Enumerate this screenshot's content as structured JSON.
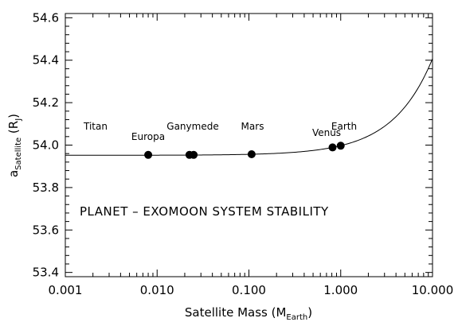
{
  "chart_data": {
    "type": "scatter",
    "title": "",
    "xlabel": {
      "main": "Satellite Mass (M",
      "sub": "Earth",
      "tail": ")"
    },
    "ylabel": {
      "main": "a",
      "sub": "Satellite",
      "tail": " (R",
      "sub2": "J",
      "tail2": ")"
    },
    "xscale": "log",
    "xlim": [
      0.001,
      10.0
    ],
    "ylim": [
      53.38,
      54.62
    ],
    "xticks": [
      {
        "value": 0.001,
        "label": "0.001"
      },
      {
        "value": 0.01,
        "label": "0.010"
      },
      {
        "value": 0.1,
        "label": "0.100"
      },
      {
        "value": 1.0,
        "label": "1.000"
      },
      {
        "value": 10.0,
        "label": "10.000"
      }
    ],
    "yticks": [
      {
        "value": 53.4,
        "label": "53.4"
      },
      {
        "value": 53.6,
        "label": "53.6"
      },
      {
        "value": 53.8,
        "label": "53.8"
      },
      {
        "value": 54.0,
        "label": "54.0"
      },
      {
        "value": 54.2,
        "label": "54.2"
      },
      {
        "value": 54.4,
        "label": "54.4"
      },
      {
        "value": 54.6,
        "label": "54.6"
      }
    ],
    "points": [
      {
        "name": "Titan",
        "x": 0.0225,
        "y": 53.954
      },
      {
        "name": "Europa",
        "x": 0.008,
        "y": 53.954
      },
      {
        "name": "Ganymede",
        "x": 0.025,
        "y": 53.954
      },
      {
        "name": "Mars",
        "x": 0.107,
        "y": 53.957
      },
      {
        "name": "Venus",
        "x": 0.815,
        "y": 53.989
      },
      {
        "name": "Earth",
        "x": 1.0,
        "y": 53.997
      }
    ],
    "curve": {
      "y0": 53.952,
      "slope_per_mass": 0.0455
    },
    "grid": false,
    "annotation": "PLANET – EXOMOON SYSTEM STABILITY"
  }
}
